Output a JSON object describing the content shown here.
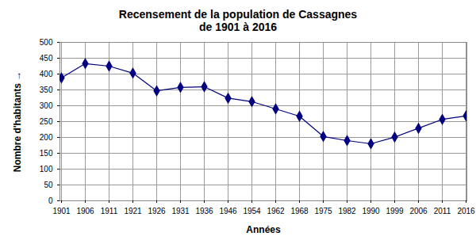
{
  "chart_data": {
    "type": "line",
    "title": "Recensement de la population de Cassagnes",
    "subtitle": "de 1901 à 2016",
    "x_label": "Années",
    "y_label": "Nombre d'habitants",
    "categories": [
      "1901",
      "1906",
      "1911",
      "1921",
      "1926",
      "1931",
      "1936",
      "1946",
      "1954",
      "1962",
      "1968",
      "1975",
      "1982",
      "1990",
      "1999",
      "2006",
      "2011",
      "2016"
    ],
    "values": [
      388,
      433,
      425,
      403,
      347,
      358,
      360,
      324,
      313,
      290,
      267,
      203,
      190,
      180,
      201,
      229,
      257,
      268
    ],
    "color": "#000080",
    "marker": "diamond",
    "ylim": [
      0,
      500
    ],
    "yticks": [
      0,
      50,
      100,
      150,
      200,
      250,
      300,
      350,
      400,
      450,
      500
    ],
    "grid": true
  }
}
